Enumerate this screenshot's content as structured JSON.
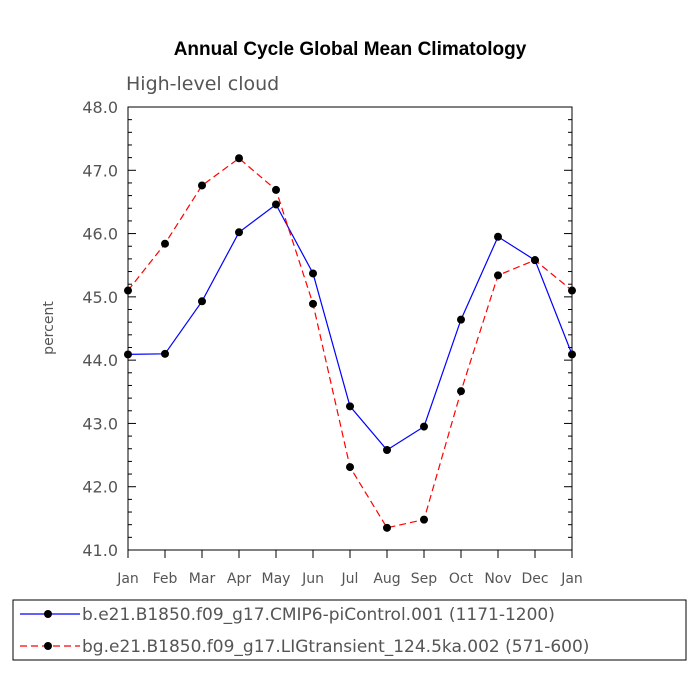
{
  "chart_data": {
    "type": "line",
    "title": "Annual Cycle Global Mean Climatology",
    "subtitle": "High-level cloud",
    "xlabel": "",
    "ylabel": "percent",
    "ylim": [
      41.0,
      48.0
    ],
    "yticks": [
      "41.0",
      "42.0",
      "43.0",
      "44.0",
      "45.0",
      "46.0",
      "47.0",
      "48.0"
    ],
    "categories": [
      "Jan",
      "Feb",
      "Mar",
      "Apr",
      "May",
      "Jun",
      "Jul",
      "Aug",
      "Sep",
      "Oct",
      "Nov",
      "Dec",
      "Jan"
    ],
    "series": [
      {
        "name": "b.e21.B1850.f09_g17.CMIP6-piControl.001 (1171-1200)",
        "color": "#0000ff",
        "style": "solid",
        "values": [
          44.09,
          44.1,
          44.93,
          46.02,
          46.46,
          45.37,
          43.27,
          42.58,
          42.95,
          44.64,
          45.95,
          45.58,
          44.09
        ]
      },
      {
        "name": "bg.e21.B1850.f09_g17.LIGtransient_124.5ka.002 (571-600)",
        "color": "#ff0000",
        "style": "dashed",
        "values": [
          45.1,
          45.84,
          46.76,
          47.19,
          46.69,
          44.89,
          42.31,
          41.35,
          41.48,
          43.51,
          45.34,
          45.58,
          45.1
        ]
      }
    ]
  }
}
